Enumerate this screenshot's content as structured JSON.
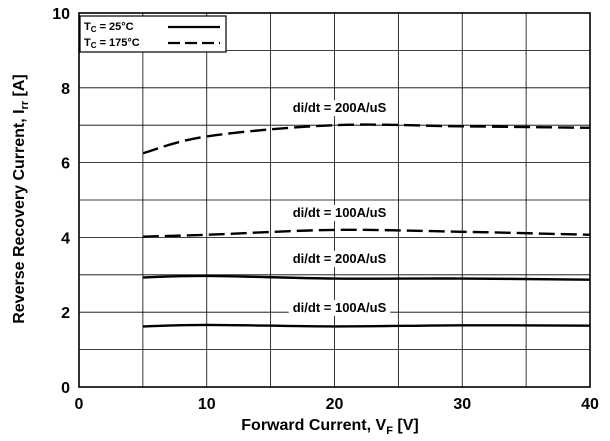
{
  "chart_data": {
    "type": "line",
    "xlabel": {
      "main": "Forward Current, V",
      "sub": "F",
      "unit": " [V]"
    },
    "ylabel": {
      "main": "Reverse  Recovery  Current,  I",
      "sub": "rr",
      "unit": " [A]"
    },
    "xlim": [
      0,
      40
    ],
    "ylim": [
      0,
      10
    ],
    "xticks": [
      0,
      10,
      20,
      30,
      40
    ],
    "yticks": [
      0,
      2,
      4,
      6,
      8,
      10
    ],
    "grid": true,
    "legend_position": "top-left",
    "legend": [
      {
        "prefix": "T",
        "sub": "C",
        "suffix": " = 25°C",
        "style": "solid"
      },
      {
        "prefix": "T",
        "sub": "C",
        "suffix": " = 175°C",
        "style": "dashed"
      }
    ],
    "series": [
      {
        "style": "dashed",
        "annotation": "di/dt = 200A/uS",
        "x": [
          5,
          10,
          20,
          30,
          40
        ],
        "y": [
          6.25,
          6.7,
          7.0,
          6.97,
          6.93
        ]
      },
      {
        "style": "dashed",
        "annotation": "di/dt = 100A/uS",
        "x": [
          5,
          10,
          20,
          30,
          40
        ],
        "y": [
          4.02,
          4.07,
          4.2,
          4.15,
          4.07
        ]
      },
      {
        "style": "solid",
        "annotation": "di/dt = 200A/uS",
        "x": [
          5,
          10,
          20,
          30,
          40
        ],
        "y": [
          2.93,
          2.97,
          2.9,
          2.9,
          2.87
        ]
      },
      {
        "style": "solid",
        "annotation": "di/dt = 100A/uS",
        "x": [
          5,
          10,
          20,
          30,
          40
        ],
        "y": [
          1.62,
          1.66,
          1.62,
          1.65,
          1.64
        ]
      }
    ]
  }
}
